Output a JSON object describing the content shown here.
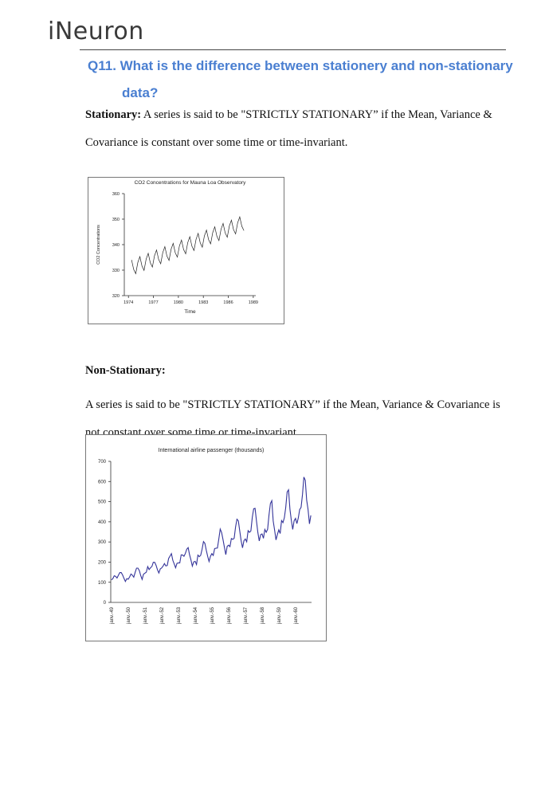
{
  "header": {
    "logo": "iNeuron"
  },
  "question": "Q11. What is the difference between stationery and non-stationary data?",
  "sections": [
    {
      "label": "Stationary:",
      "text": "A series is said to be \"STRICTLY STATIONARY” if the Mean, Variance & Covariance is constant over some time or time-invariant."
    },
    {
      "label": "Non-Stationary:",
      "text": "A series is said to be \"STRICTLY STATIONARY” if the Mean, Variance & Covariance is not constant over some time or time-invariant."
    }
  ],
  "chart_data": [
    {
      "type": "line",
      "title": "CO2 Concentrations for Mauna Loa Observatory",
      "x_label": "Time",
      "y_label": "CO2 Concentrations",
      "color": "#222222",
      "x": [
        1974.375,
        1974.625,
        1974.875,
        1975.125,
        1975.375,
        1975.625,
        1975.875,
        1976.125,
        1976.375,
        1976.625,
        1976.875,
        1977.125,
        1977.375,
        1977.625,
        1977.875,
        1978.125,
        1978.375,
        1978.625,
        1978.875,
        1979.125,
        1979.375,
        1979.625,
        1979.875,
        1980.125,
        1980.375,
        1980.625,
        1980.875,
        1981.125,
        1981.375,
        1981.625,
        1981.875,
        1982.125,
        1982.375,
        1982.625,
        1982.875,
        1983.125,
        1983.375,
        1983.625,
        1983.875,
        1984.125,
        1984.375,
        1984.625,
        1984.875,
        1985.125,
        1985.375,
        1985.625,
        1985.875,
        1986.125,
        1986.375,
        1986.625,
        1986.875,
        1987.125,
        1987.375,
        1987.625,
        1987.875
      ],
      "values": [
        334.0,
        330.3,
        328.6,
        333.0,
        335.3,
        331.6,
        329.9,
        334.3,
        336.6,
        332.9,
        331.2,
        335.6,
        337.9,
        334.2,
        332.5,
        336.9,
        339.2,
        335.5,
        333.8,
        338.2,
        340.5,
        336.8,
        335.1,
        339.5,
        341.8,
        338.1,
        336.4,
        340.8,
        343.1,
        339.4,
        337.7,
        342.1,
        344.4,
        340.7,
        339.0,
        343.4,
        345.7,
        342.0,
        340.3,
        344.7,
        347.0,
        343.3,
        341.6,
        346.0,
        348.3,
        344.6,
        342.9,
        347.3,
        349.6,
        345.9,
        344.2,
        348.6,
        350.9,
        347.2,
        345.5
      ],
      "xlim": [
        1973.5,
        1989.3
      ],
      "xticks": [
        1974,
        1977,
        1980,
        1983,
        1986,
        1989
      ],
      "ylim": [
        320,
        360
      ],
      "yticks": [
        320,
        330,
        340,
        350,
        360
      ],
      "grid": false
    },
    {
      "type": "line",
      "title": "International airline passenger (thousands)",
      "color": "#333399",
      "categories": [
        "janv.-49",
        null,
        null,
        null,
        null,
        null,
        null,
        null,
        null,
        null,
        null,
        null,
        "janv.-50",
        null,
        null,
        null,
        null,
        null,
        null,
        null,
        null,
        null,
        null,
        null,
        "janv.-51",
        null,
        null,
        null,
        null,
        null,
        null,
        null,
        null,
        null,
        null,
        null,
        "janv.-52",
        null,
        null,
        null,
        null,
        null,
        null,
        null,
        null,
        null,
        null,
        null,
        "janv.-53",
        null,
        null,
        null,
        null,
        null,
        null,
        null,
        null,
        null,
        null,
        null,
        "janv.-54",
        null,
        null,
        null,
        null,
        null,
        null,
        null,
        null,
        null,
        null,
        null,
        "janv.-55",
        null,
        null,
        null,
        null,
        null,
        null,
        null,
        null,
        null,
        null,
        null,
        "janv.-56",
        null,
        null,
        null,
        null,
        null,
        null,
        null,
        null,
        null,
        null,
        null,
        "janv.-57",
        null,
        null,
        null,
        null,
        null,
        null,
        null,
        null,
        null,
        null,
        null,
        "janv.-58",
        null,
        null,
        null,
        null,
        null,
        null,
        null,
        null,
        null,
        null,
        null,
        "janv.-59",
        null,
        null,
        null,
        null,
        null,
        null,
        null,
        null,
        null,
        null,
        null,
        "janv.-60",
        null,
        null,
        null,
        null,
        null,
        null,
        null,
        null,
        null,
        null,
        null
      ],
      "values": [
        112,
        118,
        132,
        129,
        121,
        135,
        148,
        148,
        136,
        119,
        104,
        118,
        115,
        126,
        141,
        135,
        125,
        149,
        170,
        170,
        158,
        133,
        114,
        140,
        145,
        150,
        178,
        163,
        172,
        178,
        199,
        199,
        184,
        162,
        146,
        166,
        171,
        180,
        193,
        181,
        183,
        218,
        230,
        242,
        209,
        191,
        172,
        194,
        196,
        196,
        236,
        235,
        229,
        243,
        264,
        272,
        237,
        211,
        180,
        201,
        204,
        188,
        235,
        227,
        234,
        264,
        302,
        293,
        259,
        229,
        203,
        229,
        242,
        233,
        267,
        269,
        270,
        315,
        364,
        347,
        312,
        274,
        237,
        278,
        284,
        277,
        317,
        313,
        318,
        374,
        413,
        405,
        355,
        306,
        271,
        306,
        315,
        301,
        356,
        348,
        355,
        422,
        465,
        467,
        404,
        347,
        305,
        336,
        340,
        318,
        362,
        348,
        363,
        435,
        491,
        505,
        404,
        359,
        310,
        337,
        360,
        342,
        406,
        396,
        420,
        472,
        548,
        559,
        463,
        407,
        362,
        405,
        417,
        391,
        419,
        461,
        472,
        535,
        622,
        606,
        508,
        461,
        390,
        432
      ],
      "ylim": [
        0,
        700
      ],
      "yticks": [
        0,
        100,
        200,
        300,
        400,
        500,
        600,
        700
      ],
      "grid": false
    }
  ]
}
